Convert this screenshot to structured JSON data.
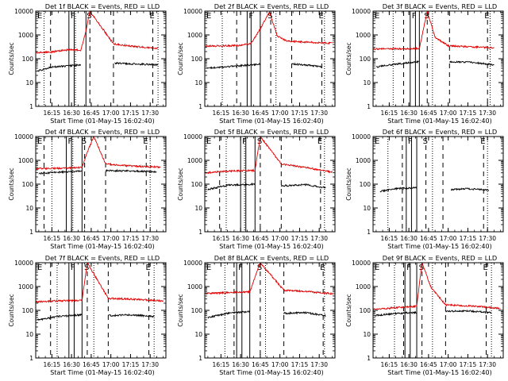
{
  "chart_data": [
    {
      "type": "line",
      "title": "Det 1f BLACK = Events, RED = LLD",
      "xlabel": "Start Time (01-May-15 16:02:40)",
      "ylabel": "Counts/sec",
      "xlim": [
        "16:02:40",
        "17:42:00"
      ],
      "ylim": [
        1,
        10000
      ],
      "yscale": "log",
      "x_ticks": [
        "16:15",
        "16:30",
        "16:45",
        "17:00",
        "17:15",
        "17:30"
      ],
      "y_ticks": [
        "1",
        "10",
        "100",
        "1000",
        "10000"
      ],
      "region_labels": [
        "E",
        "F",
        "S",
        "E"
      ],
      "dashed_lines": [
        "16:14",
        "16:44",
        "17:02",
        "17:32"
      ],
      "solid_lines": [
        "16:28",
        "16:32",
        "16:41"
      ],
      "dotted_lines": [
        "16:09",
        "16:33",
        "17:36"
      ],
      "series": [
        {
          "color": "#e00000",
          "segments": [
            {
              "x": [
                "16:03",
                "16:14",
                "16:28",
                "16:37",
                "16:41",
                "16:44",
                "17:02",
                "17:20",
                "17:36"
              ],
              "y": [
                180,
                190,
                240,
                230,
                1400,
                10000,
                420,
                320,
                270
              ]
            }
          ]
        },
        {
          "color": "#000000",
          "segments": [
            {
              "x": [
                "16:04",
                "16:14",
                "16:28",
                "16:37"
              ],
              "y": [
                30,
                45,
                50,
                55
              ]
            },
            {
              "x": [
                "17:03",
                "17:20",
                "17:36"
              ],
              "y": [
                65,
                60,
                55
              ]
            }
          ]
        }
      ]
    },
    {
      "type": "line",
      "title": "Det 2f BLACK = Events, RED = LLD",
      "xlabel": "Start Time (01-May-15 16:02:40)",
      "ylabel": "Counts/sec",
      "xlim": [
        "16:02:40",
        "17:42:00"
      ],
      "ylim": [
        1,
        10000
      ],
      "yscale": "log",
      "x_ticks": [
        "16:15",
        "16:30",
        "16:45",
        "17:00",
        "17:15",
        "17:30"
      ],
      "y_ticks": [
        "1",
        "10",
        "100",
        "1000",
        "10000"
      ],
      "region_labels": [
        "E",
        "F",
        "S",
        "E"
      ],
      "dashed_lines": [
        "16:27",
        "16:53",
        "17:09",
        "17:32"
      ],
      "solid_lines": [
        "16:35",
        "16:38",
        "16:45"
      ],
      "dotted_lines": [
        "16:16",
        "16:57",
        "17:34"
      ],
      "series": [
        {
          "color": "#e00000",
          "segments": [
            {
              "x": [
                "16:03",
                "16:28",
                "16:38",
                "16:45",
                "16:52",
                "16:58",
                "17:05",
                "17:20",
                "17:40"
              ],
              "y": [
                340,
                360,
                430,
                1800,
                9000,
                900,
                560,
                500,
                450
              ]
            }
          ]
        },
        {
          "color": "#000000",
          "segments": [
            {
              "x": [
                "16:04",
                "16:28",
                "16:38",
                "16:45"
              ],
              "y": [
                40,
                50,
                55,
                60
              ]
            },
            {
              "x": [
                "17:09",
                "17:20",
                "17:32"
              ],
              "y": [
                60,
                55,
                45
              ]
            }
          ]
        }
      ]
    },
    {
      "type": "line",
      "title": "Det 3f BLACK = Events, RED = LLD",
      "xlabel": "Start Time (01-May-15 16:02:40)",
      "ylabel": "Counts/sec",
      "xlim": [
        "16:02:40",
        "17:42:00"
      ],
      "ylim": [
        1,
        10000
      ],
      "yscale": "log",
      "x_ticks": [
        "16:15",
        "16:30",
        "16:45",
        "17:00",
        "17:15",
        "17:30"
      ],
      "y_ticks": [
        "1",
        "10",
        "100",
        "1000",
        "10000"
      ],
      "region_labels": [
        "E",
        "F",
        "S",
        "E"
      ],
      "dashed_lines": [
        "16:26",
        "16:44",
        "17:01",
        "17:30"
      ],
      "solid_lines": [
        "16:31",
        "16:35",
        "16:38"
      ],
      "dotted_lines": [
        "16:18",
        "16:48",
        "17:32"
      ],
      "series": [
        {
          "color": "#e00000",
          "segments": [
            {
              "x": [
                "16:03",
                "16:20",
                "16:38",
                "16:44",
                "16:50",
                "17:00",
                "17:15",
                "17:35"
              ],
              "y": [
                260,
                260,
                270,
                10000,
                800,
                350,
                320,
                290
              ]
            }
          ]
        },
        {
          "color": "#000000",
          "segments": [
            {
              "x": [
                "16:05",
                "16:20",
                "16:38"
              ],
              "y": [
                45,
                60,
                75
              ]
            },
            {
              "x": [
                "17:01",
                "17:20",
                "17:35"
              ],
              "y": [
                75,
                70,
                55
              ]
            }
          ]
        }
      ]
    },
    {
      "type": "line",
      "title": "Det 4f BLACK = Events, RED = LLD",
      "xlabel": "Start Time (01-May-15 16:02:40)",
      "ylabel": "Counts/sec",
      "xlim": [
        "16:02:40",
        "17:42:00"
      ],
      "ylim": [
        1,
        10000
      ],
      "yscale": "log",
      "x_ticks": [
        "16:15",
        "16:30",
        "16:45",
        "17:00",
        "17:15",
        "17:30"
      ],
      "y_ticks": [
        "1",
        "10",
        "100",
        "1000",
        "10000"
      ],
      "region_labels": [
        "E",
        "F",
        "S",
        "E"
      ],
      "dashed_lines": [
        "16:09",
        "16:40",
        "16:56",
        "17:27"
      ],
      "solid_lines": [
        "16:26",
        "16:30",
        "16:38"
      ],
      "dotted_lines": [
        "16:15",
        "16:31",
        "17:30"
      ],
      "series": [
        {
          "color": "#e00000",
          "segments": [
            {
              "x": [
                "16:03",
                "16:20",
                "16:38",
                "16:43",
                "16:47",
                "16:56",
                "17:15",
                "17:38"
              ],
              "y": [
                450,
                460,
                500,
                3000,
                10000,
                700,
                580,
                520
              ]
            }
          ]
        },
        {
          "color": "#000000",
          "segments": [
            {
              "x": [
                "16:05",
                "16:20",
                "16:38"
              ],
              "y": [
                280,
                320,
                350
              ]
            },
            {
              "x": [
                "16:56",
                "17:15",
                "17:35"
              ],
              "y": [
                370,
                360,
                330
              ]
            }
          ]
        }
      ]
    },
    {
      "type": "line",
      "title": "Det 5f BLACK = Events, RED = LLD",
      "xlabel": "Start Time (01-May-15 16:02:40)",
      "ylabel": "Counts/sec",
      "xlim": [
        "16:02:40",
        "17:42:00"
      ],
      "ylim": [
        1,
        10000
      ],
      "yscale": "log",
      "x_ticks": [
        "16:15",
        "16:30",
        "16:45",
        "17:00",
        "17:15",
        "17:30"
      ],
      "y_ticks": [
        "1",
        "10",
        "100",
        "1000",
        "10000"
      ],
      "region_labels": [
        "E",
        "F",
        "S",
        "E"
      ],
      "dashed_lines": [
        "16:14",
        "16:45",
        "17:01",
        "17:31"
      ],
      "solid_lines": [
        "16:30",
        "16:34",
        "16:41"
      ],
      "dotted_lines": [
        "16:19",
        "16:33",
        "17:34"
      ],
      "series": [
        {
          "color": "#e00000",
          "segments": [
            {
              "x": [
                "16:03",
                "16:20",
                "16:41",
                "16:45",
                "17:01",
                "17:20",
                "17:40"
              ],
              "y": [
                300,
                350,
                380,
                10000,
                700,
                500,
                320
              ]
            }
          ]
        },
        {
          "color": "#000000",
          "segments": [
            {
              "x": [
                "16:05",
                "16:20",
                "16:41"
              ],
              "y": [
                60,
                90,
                100
              ]
            },
            {
              "x": [
                "17:01",
                "17:20",
                "17:35"
              ],
              "y": [
                85,
                95,
                70
              ]
            }
          ]
        }
      ]
    },
    {
      "type": "line",
      "title": "Det 6f BLACK = Events, RED = LLD",
      "xlabel": "Start Time (01-May-15 16:02:40)",
      "ylabel": "Counts/sec",
      "xlim": [
        "16:02:40",
        "17:42:00"
      ],
      "ylim": [
        1,
        10000
      ],
      "yscale": "log",
      "x_ticks": [
        "16:15",
        "16:30",
        "16:45",
        "17:00",
        "17:15",
        "17:30"
      ],
      "y_ticks": [
        "1",
        "10",
        "100",
        "1000",
        "10000"
      ],
      "region_labels": [
        "E",
        "F",
        "S",
        "E"
      ],
      "dashed_lines": [
        "16:25",
        "16:43",
        "16:56",
        "17:27"
      ],
      "solid_lines": [
        "16:28",
        "16:32",
        "16:36"
      ],
      "dotted_lines": [
        "16:14",
        "16:48",
        "17:30"
      ],
      "series": [
        {
          "color": "#000000",
          "segments": [
            {
              "x": [
                "16:08",
                "16:20",
                "16:36"
              ],
              "y": [
                50,
                65,
                70
              ]
            },
            {
              "x": [
                "17:02",
                "17:15",
                "17:31"
              ],
              "y": [
                60,
                65,
                55
              ]
            }
          ]
        }
      ]
    },
    {
      "type": "line",
      "title": "Det 7f BLACK = Events, RED = LLD",
      "xlabel": "Start Time (01-May-15 16:02:40)",
      "ylabel": "Counts/sec",
      "xlim": [
        "16:02:40",
        "17:42:00"
      ],
      "ylim": [
        1,
        10000
      ],
      "yscale": "log",
      "x_ticks": [
        "16:15",
        "16:30",
        "16:45",
        "17:00",
        "17:15",
        "17:30"
      ],
      "y_ticks": [
        "1",
        "10",
        "100",
        "1000",
        "10000"
      ],
      "region_labels": [
        "E",
        "F",
        "S",
        "E"
      ],
      "dashed_lines": [
        "16:14",
        "16:42",
        "16:58",
        "17:29"
      ],
      "solid_lines": [
        "16:28",
        "16:32",
        "16:38"
      ],
      "dotted_lines": [
        "16:19",
        "16:47",
        "17:33"
      ],
      "series": [
        {
          "color": "#e00000",
          "segments": [
            {
              "x": [
                "16:03",
                "16:20",
                "16:38",
                "16:42",
                "16:58",
                "17:20",
                "17:40"
              ],
              "y": [
                230,
                250,
                260,
                10000,
                320,
                290,
                250
              ]
            }
          ]
        },
        {
          "color": "#000000",
          "segments": [
            {
              "x": [
                "16:04",
                "16:20",
                "16:38"
              ],
              "y": [
                40,
                55,
                65
              ]
            },
            {
              "x": [
                "16:58",
                "17:15",
                "17:33"
              ],
              "y": [
                60,
                65,
                55
              ]
            }
          ]
        }
      ]
    },
    {
      "type": "line",
      "title": "Det 8f BLACK = Events, RED = LLD",
      "xlabel": "Start Time (01-May-15 16:02:40)",
      "ylabel": "Counts/sec",
      "xlim": [
        "16:02:40",
        "17:42:00"
      ],
      "ylim": [
        1,
        10000
      ],
      "yscale": "log",
      "x_ticks": [
        "16:15",
        "16:30",
        "16:45",
        "17:00",
        "17:15",
        "17:30"
      ],
      "y_ticks": [
        "1",
        "10",
        "100",
        "1000",
        "10000"
      ],
      "region_labels": [
        "E",
        "F",
        "S",
        "E"
      ],
      "dashed_lines": [
        "16:25",
        "16:45",
        "17:03",
        "17:33"
      ],
      "solid_lines": [
        "16:27",
        "16:31",
        "16:37"
      ],
      "dotted_lines": [
        "16:18",
        "16:49",
        "17:34"
      ],
      "series": [
        {
          "color": "#e00000",
          "segments": [
            {
              "x": [
                "16:03",
                "16:20",
                "16:37",
                "16:45",
                "17:03",
                "17:20",
                "17:40"
              ],
              "y": [
                500,
                560,
                600,
                10000,
                700,
                620,
                500
              ]
            }
          ]
        },
        {
          "color": "#000000",
          "segments": [
            {
              "x": [
                "16:05",
                "16:20",
                "16:37"
              ],
              "y": [
                50,
                75,
                90
              ]
            },
            {
              "x": [
                "17:03",
                "17:20",
                "17:35"
              ],
              "y": [
                75,
                80,
                60
              ]
            }
          ]
        }
      ]
    },
    {
      "type": "line",
      "title": "Det 9f BLACK = Events, RED = LLD",
      "xlabel": "Start Time (01-May-15 16:02:40)",
      "ylabel": "Counts/sec",
      "xlim": [
        "16:02:40",
        "17:42:00"
      ],
      "ylim": [
        1,
        10000
      ],
      "yscale": "log",
      "x_ticks": [
        "16:15",
        "16:30",
        "16:45",
        "17:00",
        "17:15",
        "17:30"
      ],
      "y_ticks": [
        "1",
        "10",
        "100",
        "1000",
        "10000"
      ],
      "region_labels": [
        "E",
        "F",
        "S",
        "E"
      ],
      "dashed_lines": [
        "16:26",
        "16:40",
        "16:58",
        "17:29"
      ],
      "solid_lines": [
        "16:27",
        "16:31",
        "16:36"
      ],
      "dotted_lines": [
        "16:19",
        "16:48",
        "17:33"
      ],
      "series": [
        {
          "color": "#e00000",
          "segments": [
            {
              "x": [
                "16:03",
                "16:20",
                "16:36",
                "16:40",
                "16:47",
                "16:58",
                "17:20",
                "17:40"
              ],
              "y": [
                110,
                130,
                150,
                10000,
                900,
                170,
                150,
                120
              ]
            }
          ]
        },
        {
          "color": "#000000",
          "segments": [
            {
              "x": [
                "16:04",
                "16:20",
                "16:36"
              ],
              "y": [
                60,
                75,
                80
              ]
            },
            {
              "x": [
                "16:58",
                "17:15",
                "17:33"
              ],
              "y": [
                90,
                95,
                80
              ]
            }
          ]
        }
      ]
    }
  ]
}
